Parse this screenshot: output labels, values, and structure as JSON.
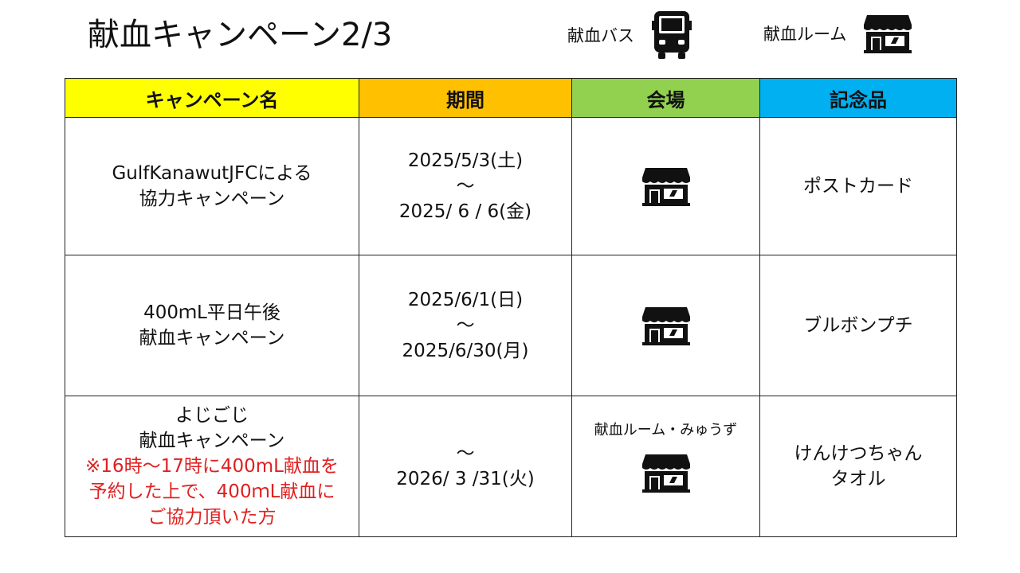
{
  "title": "献血キャンペーン2/3",
  "legend": {
    "bus_label": "献血バス",
    "bus_icon": "bus-icon",
    "room_label": "献血ルーム",
    "room_icon": "shop-icon"
  },
  "colors": {
    "header_name": "#ffff00",
    "header_period": "#ffc000",
    "header_venue": "#92d050",
    "header_gift": "#00b0f0",
    "note_red": "#e02020"
  },
  "table": {
    "headers": {
      "name": "キャンペーン名",
      "period": "期間",
      "venue": "会場",
      "gift": "記念品"
    },
    "rows": [
      {
        "name_line1": "GulfKanawutJFCによる",
        "name_line2": "協力キャンペーン",
        "period_start": "2025/5/3(土)",
        "period_sep": "～",
        "period_end": "2025/ 6 / 6(金)",
        "venue_icon": "shop-icon",
        "gift_line1": "ポストカード"
      },
      {
        "name_line1": "400ｍL平日午後",
        "name_line2": "献血キャンペーン",
        "period_start": "2025/6/1(日)",
        "period_sep": "～",
        "period_end": "2025/6/30(月)",
        "venue_icon": "shop-icon",
        "gift_line1": "ブルボンプチ"
      },
      {
        "name_line1": "よじごじ",
        "name_line2": "献血キャンペーン",
        "note_line1": "※16時～17時に400mL献血を",
        "note_line2": "予約した上で、400ｍL献血に",
        "note_line3": "ご協力頂いた方",
        "period_sep": "～",
        "period_end": "2026/ 3 /31(火)",
        "venue_label": "献血ルーム・みゅうず",
        "venue_icon": "shop-icon",
        "gift_line1": "けんけつちゃん",
        "gift_line2": "タオル"
      }
    ]
  }
}
